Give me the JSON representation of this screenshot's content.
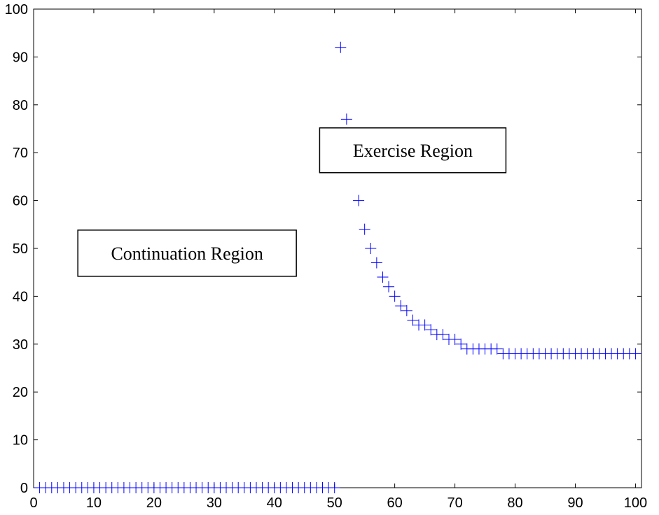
{
  "chart_data": {
    "type": "scatter",
    "title": "",
    "xlabel": "",
    "ylabel": "",
    "xlim": [
      0,
      101
    ],
    "ylim": [
      0,
      100
    ],
    "x_ticks": [
      0,
      10,
      20,
      30,
      40,
      50,
      60,
      70,
      80,
      90,
      100
    ],
    "y_ticks": [
      0,
      10,
      20,
      30,
      40,
      50,
      60,
      70,
      80,
      90,
      100
    ],
    "grid": false,
    "marker": "+",
    "color": "#0000ff",
    "series": [
      {
        "x": [
          1,
          2,
          3,
          4,
          5,
          6,
          7,
          8,
          9,
          10,
          11,
          12,
          13,
          14,
          15,
          16,
          17,
          18,
          19,
          20,
          21,
          22,
          23,
          24,
          25,
          26,
          27,
          28,
          29,
          30,
          31,
          32,
          33,
          34,
          35,
          36,
          37,
          38,
          39,
          40,
          41,
          42,
          43,
          44,
          45,
          46,
          47,
          48,
          49,
          50,
          51,
          52,
          53,
          54,
          55,
          56,
          57,
          58,
          59,
          60,
          61,
          62,
          63,
          64,
          65,
          66,
          67,
          68,
          69,
          70,
          71,
          72,
          73,
          74,
          75,
          76,
          77,
          78,
          79,
          80,
          81,
          82,
          83,
          84,
          85,
          86,
          87,
          88,
          89,
          90,
          91,
          92,
          93,
          94,
          95,
          96,
          97,
          98,
          99,
          100
        ],
        "y": [
          0,
          0,
          0,
          0,
          0,
          0,
          0,
          0,
          0,
          0,
          0,
          0,
          0,
          0,
          0,
          0,
          0,
          0,
          0,
          0,
          0,
          0,
          0,
          0,
          0,
          0,
          0,
          0,
          0,
          0,
          0,
          0,
          0,
          0,
          0,
          0,
          0,
          0,
          0,
          0,
          0,
          0,
          0,
          0,
          0,
          0,
          0,
          0,
          0,
          0,
          92,
          77,
          67,
          60,
          54,
          50,
          47,
          44,
          42,
          40,
          38,
          37,
          35,
          34,
          34,
          33,
          32,
          32,
          31,
          31,
          30,
          29,
          29,
          29,
          29,
          29,
          29,
          28,
          28,
          28,
          28,
          28,
          28,
          28,
          28,
          28,
          28,
          28,
          28,
          28,
          28,
          28,
          28,
          28,
          28,
          28,
          28,
          28,
          28,
          28
        ]
      }
    ],
    "annotations": [
      {
        "text": "Exercise Region",
        "x": 63,
        "y": 70.5
      },
      {
        "text": "Continuation Region",
        "x": 25.5,
        "y": 49
      }
    ]
  }
}
